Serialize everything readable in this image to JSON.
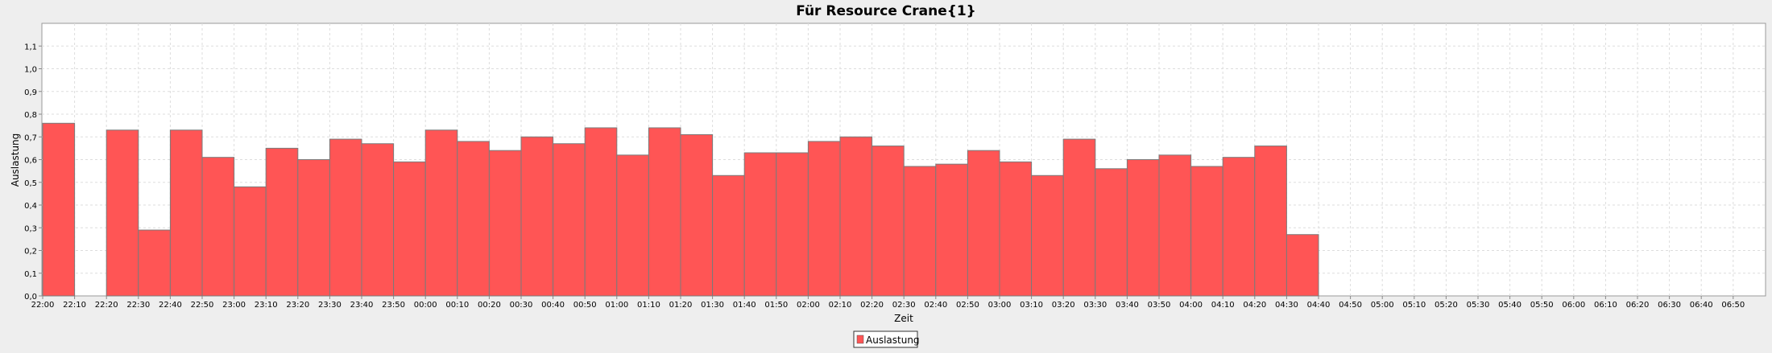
{
  "chart_data": {
    "type": "bar",
    "title": "Für Resource Crane{1}",
    "xlabel": "Zeit",
    "ylabel": "Auslastung",
    "ylim": [
      0,
      1.2
    ],
    "y_ticks": [
      "0,0",
      "0,1",
      "0,2",
      "0,3",
      "0,4",
      "0,5",
      "0,6",
      "0,7",
      "0,8",
      "0,9",
      "1,0",
      "1,1"
    ],
    "grid": true,
    "legend_position": "bottom-center",
    "series": [
      {
        "name": "Auslastung",
        "color": "#ff5555",
        "values": [
          0.76,
          0,
          0.73,
          0.29,
          0.73,
          0.61,
          0.48,
          0.65,
          0.6,
          0.69,
          0.67,
          0.59,
          0.73,
          0.68,
          0.64,
          0.7,
          0.67,
          0.74,
          0.62,
          0.74,
          0.71,
          0.53,
          0.63,
          0.63,
          0.68,
          0.7,
          0.66,
          0.57,
          0.58,
          0.64,
          0.59,
          0.53,
          0.69,
          0.56,
          0.6,
          0.62,
          0.57,
          0.61,
          0.66,
          0.27,
          null,
          null,
          null,
          null,
          null,
          null,
          null,
          null,
          null,
          null,
          null,
          null,
          null,
          null
        ]
      }
    ],
    "categories": [
      "22:00",
      "22:10",
      "22:20",
      "22:30",
      "22:40",
      "22:50",
      "23:00",
      "23:10",
      "23:20",
      "23:30",
      "23:40",
      "23:50",
      "00:00",
      "00:10",
      "00:20",
      "00:30",
      "00:40",
      "00:50",
      "01:00",
      "01:10",
      "01:20",
      "01:30",
      "01:40",
      "01:50",
      "02:00",
      "02:10",
      "02:20",
      "02:30",
      "02:40",
      "02:50",
      "03:00",
      "03:10",
      "03:20",
      "03:30",
      "03:40",
      "03:50",
      "04:00",
      "04:10",
      "04:20",
      "04:30",
      "04:40",
      "04:50",
      "05:00",
      "05:10",
      "05:20",
      "05:30",
      "05:40",
      "05:50",
      "06:00",
      "06:10",
      "06:20",
      "06:30",
      "06:40",
      "06:50"
    ]
  }
}
